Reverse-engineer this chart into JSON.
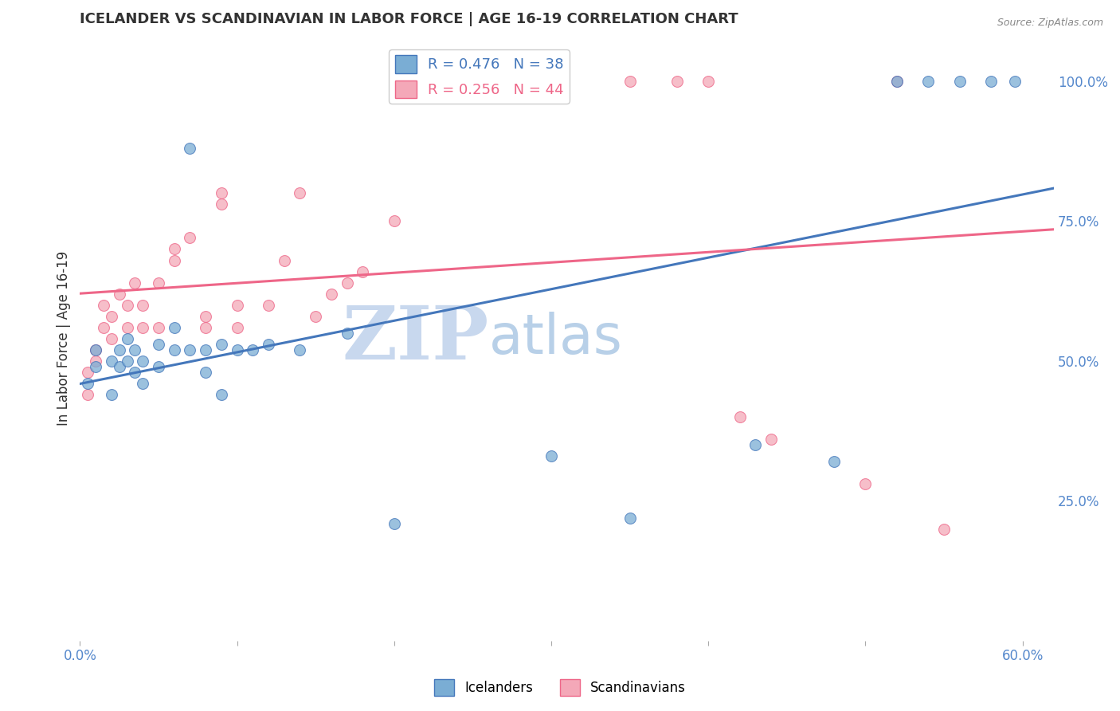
{
  "title": "ICELANDER VS SCANDINAVIAN IN LABOR FORCE | AGE 16-19 CORRELATION CHART",
  "source": "Source: ZipAtlas.com",
  "ylabel": "In Labor Force | Age 16-19",
  "xlim": [
    0.0,
    0.62
  ],
  "ylim": [
    0.0,
    1.08
  ],
  "xtick_positions": [
    0.0,
    0.1,
    0.2,
    0.3,
    0.4,
    0.5,
    0.6
  ],
  "xtick_labels": [
    "0.0%",
    "",
    "",
    "",
    "",
    "",
    "60.0%"
  ],
  "yticks_right": [
    0.25,
    0.5,
    0.75,
    1.0
  ],
  "ytick_labels_right": [
    "25.0%",
    "50.0%",
    "75.0%",
    "100.0%"
  ],
  "blue_color": "#7aadd4",
  "pink_color": "#f4a8b8",
  "blue_line_color": "#4477bb",
  "pink_line_color": "#ee6688",
  "legend_blue_label": "Icelanders",
  "legend_pink_label": "Scandinavians",
  "blue_x": [
    0.005,
    0.01,
    0.01,
    0.02,
    0.02,
    0.025,
    0.025,
    0.03,
    0.03,
    0.035,
    0.035,
    0.04,
    0.04,
    0.05,
    0.05,
    0.06,
    0.06,
    0.07,
    0.07,
    0.08,
    0.08,
    0.09,
    0.09,
    0.1,
    0.11,
    0.12,
    0.14,
    0.17,
    0.2,
    0.3,
    0.35,
    0.43,
    0.48,
    0.52,
    0.54,
    0.56,
    0.58,
    0.595
  ],
  "blue_y": [
    0.46,
    0.49,
    0.52,
    0.44,
    0.5,
    0.49,
    0.52,
    0.5,
    0.54,
    0.52,
    0.48,
    0.5,
    0.46,
    0.53,
    0.49,
    0.56,
    0.52,
    0.88,
    0.52,
    0.52,
    0.48,
    0.44,
    0.53,
    0.52,
    0.52,
    0.53,
    0.52,
    0.55,
    0.21,
    0.33,
    0.22,
    0.35,
    0.32,
    1.0,
    1.0,
    1.0,
    1.0,
    1.0
  ],
  "pink_x": [
    0.005,
    0.005,
    0.01,
    0.01,
    0.015,
    0.015,
    0.02,
    0.02,
    0.025,
    0.03,
    0.03,
    0.035,
    0.04,
    0.04,
    0.05,
    0.05,
    0.06,
    0.06,
    0.07,
    0.08,
    0.08,
    0.09,
    0.09,
    0.1,
    0.1,
    0.12,
    0.13,
    0.14,
    0.15,
    0.16,
    0.17,
    0.18,
    0.2,
    0.22,
    0.26,
    0.3,
    0.35,
    0.38,
    0.4,
    0.42,
    0.44,
    0.5,
    0.52,
    0.55
  ],
  "pink_y": [
    0.44,
    0.48,
    0.5,
    0.52,
    0.56,
    0.6,
    0.54,
    0.58,
    0.62,
    0.56,
    0.6,
    0.64,
    0.56,
    0.6,
    0.64,
    0.56,
    0.68,
    0.7,
    0.72,
    0.56,
    0.58,
    0.78,
    0.8,
    0.56,
    0.6,
    0.6,
    0.68,
    0.8,
    0.58,
    0.62,
    0.64,
    0.66,
    0.75,
    1.0,
    1.0,
    1.0,
    1.0,
    1.0,
    1.0,
    0.4,
    0.36,
    0.28,
    1.0,
    0.2
  ],
  "marker_size": 100,
  "background_color": "#ffffff",
  "grid_color": "#cccccc",
  "axis_label_color": "#5588cc",
  "title_color": "#333333",
  "watermark_zip_color": "#c8d8ee",
  "watermark_atlas_color": "#b8d0e8"
}
